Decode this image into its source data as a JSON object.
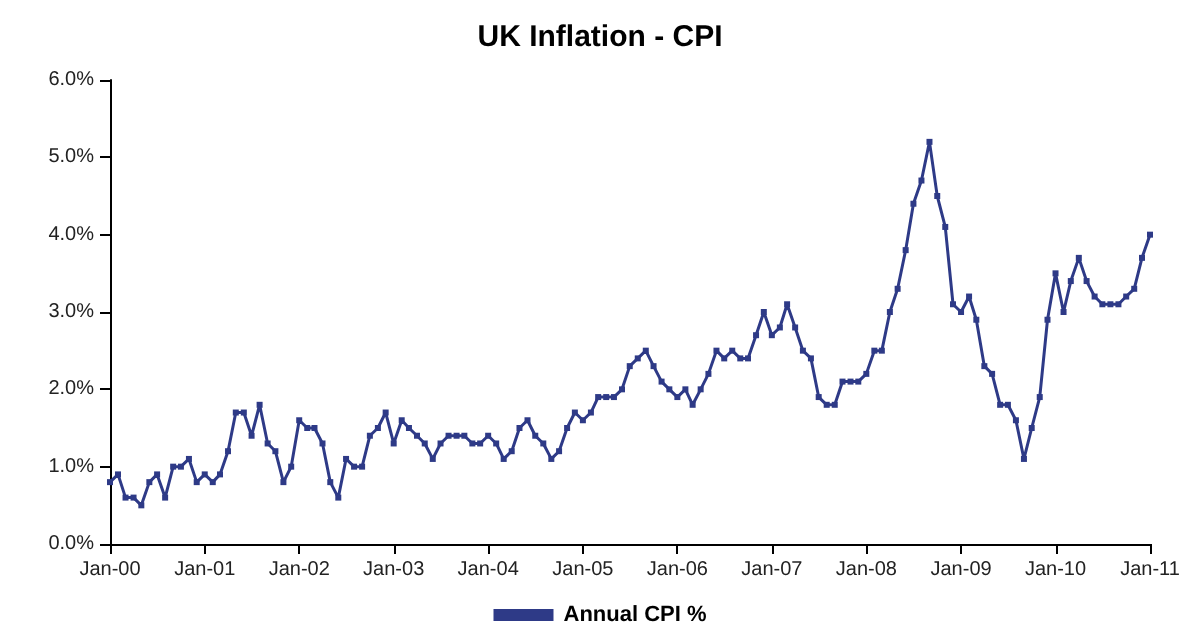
{
  "chart_data": {
    "type": "line",
    "title": "UK Inflation - CPI",
    "x": [
      "2000-01",
      "2000-02",
      "2000-03",
      "2000-04",
      "2000-05",
      "2000-06",
      "2000-07",
      "2000-08",
      "2000-09",
      "2000-10",
      "2000-11",
      "2000-12",
      "2001-01",
      "2001-02",
      "2001-03",
      "2001-04",
      "2001-05",
      "2001-06",
      "2001-07",
      "2001-08",
      "2001-09",
      "2001-10",
      "2001-11",
      "2001-12",
      "2002-01",
      "2002-02",
      "2002-03",
      "2002-04",
      "2002-05",
      "2002-06",
      "2002-07",
      "2002-08",
      "2002-09",
      "2002-10",
      "2002-11",
      "2002-12",
      "2003-01",
      "2003-02",
      "2003-03",
      "2003-04",
      "2003-05",
      "2003-06",
      "2003-07",
      "2003-08",
      "2003-09",
      "2003-10",
      "2003-11",
      "2003-12",
      "2004-01",
      "2004-02",
      "2004-03",
      "2004-04",
      "2004-05",
      "2004-06",
      "2004-07",
      "2004-08",
      "2004-09",
      "2004-10",
      "2004-11",
      "2004-12",
      "2005-01",
      "2005-02",
      "2005-03",
      "2005-04",
      "2005-05",
      "2005-06",
      "2005-07",
      "2005-08",
      "2005-09",
      "2005-10",
      "2005-11",
      "2005-12",
      "2006-01",
      "2006-02",
      "2006-03",
      "2006-04",
      "2006-05",
      "2006-06",
      "2006-07",
      "2006-08",
      "2006-09",
      "2006-10",
      "2006-11",
      "2006-12",
      "2007-01",
      "2007-02",
      "2007-03",
      "2007-04",
      "2007-05",
      "2007-06",
      "2007-07",
      "2007-08",
      "2007-09",
      "2007-10",
      "2007-11",
      "2007-12",
      "2008-01",
      "2008-02",
      "2008-03",
      "2008-04",
      "2008-05",
      "2008-06",
      "2008-07",
      "2008-08",
      "2008-09",
      "2008-10",
      "2008-11",
      "2008-12",
      "2009-01",
      "2009-02",
      "2009-03",
      "2009-04",
      "2009-05",
      "2009-06",
      "2009-07",
      "2009-08",
      "2009-09",
      "2009-10",
      "2009-11",
      "2009-12",
      "2010-01",
      "2010-02",
      "2010-03",
      "2010-04",
      "2010-05",
      "2010-06",
      "2010-07",
      "2010-08",
      "2010-09",
      "2010-10",
      "2010-11",
      "2010-12",
      "2011-01"
    ],
    "series": [
      {
        "name": "Annual CPI %",
        "color": "#2e3a87",
        "values": [
          0.8,
          0.9,
          0.6,
          0.6,
          0.5,
          0.8,
          0.9,
          0.6,
          1.0,
          1.0,
          1.1,
          0.8,
          0.9,
          0.8,
          0.9,
          1.2,
          1.7,
          1.7,
          1.4,
          1.8,
          1.3,
          1.2,
          0.8,
          1.0,
          1.6,
          1.5,
          1.5,
          1.3,
          0.8,
          0.6,
          1.1,
          1.0,
          1.0,
          1.4,
          1.5,
          1.7,
          1.3,
          1.6,
          1.5,
          1.4,
          1.3,
          1.1,
          1.3,
          1.4,
          1.4,
          1.4,
          1.3,
          1.3,
          1.4,
          1.3,
          1.1,
          1.2,
          1.5,
          1.6,
          1.4,
          1.3,
          1.1,
          1.2,
          1.5,
          1.7,
          1.6,
          1.7,
          1.9,
          1.9,
          1.9,
          2.0,
          2.3,
          2.4,
          2.5,
          2.3,
          2.1,
          2.0,
          1.9,
          2.0,
          1.8,
          2.0,
          2.2,
          2.5,
          2.4,
          2.5,
          2.4,
          2.4,
          2.7,
          3.0,
          2.7,
          2.8,
          3.1,
          2.8,
          2.5,
          2.4,
          1.9,
          1.8,
          1.8,
          2.1,
          2.1,
          2.1,
          2.2,
          2.5,
          2.5,
          3.0,
          3.3,
          3.8,
          4.4,
          4.7,
          5.2,
          4.5,
          4.1,
          3.1,
          3.0,
          3.2,
          2.9,
          2.3,
          2.2,
          1.8,
          1.8,
          1.6,
          1.1,
          1.5,
          1.9,
          2.9,
          3.5,
          3.0,
          3.4,
          3.7,
          3.4,
          3.2,
          3.1,
          3.1,
          3.1,
          3.2,
          3.3,
          3.7,
          4.0
        ]
      }
    ],
    "xlim": [
      "2000-01",
      "2011-01"
    ],
    "xticks": [
      {
        "value": "2000-01",
        "label": "Jan-00"
      },
      {
        "value": "2001-01",
        "label": "Jan-01"
      },
      {
        "value": "2002-01",
        "label": "Jan-02"
      },
      {
        "value": "2003-01",
        "label": "Jan-03"
      },
      {
        "value": "2004-01",
        "label": "Jan-04"
      },
      {
        "value": "2005-01",
        "label": "Jan-05"
      },
      {
        "value": "2006-01",
        "label": "Jan-06"
      },
      {
        "value": "2007-01",
        "label": "Jan-07"
      },
      {
        "value": "2008-01",
        "label": "Jan-08"
      },
      {
        "value": "2009-01",
        "label": "Jan-09"
      },
      {
        "value": "2010-01",
        "label": "Jan-10"
      },
      {
        "value": "2011-01",
        "label": "Jan-11"
      }
    ],
    "ylim": [
      0,
      6
    ],
    "yticks": [
      {
        "value": 0,
        "label": "0.0%"
      },
      {
        "value": 1,
        "label": "1.0%"
      },
      {
        "value": 2,
        "label": "2.0%"
      },
      {
        "value": 3,
        "label": "3.0%"
      },
      {
        "value": 4,
        "label": "4.0%"
      },
      {
        "value": 5,
        "label": "5.0%"
      },
      {
        "value": 6,
        "label": "6.0%"
      }
    ],
    "legend": "bottom",
    "marker": "square",
    "line_style": "solid"
  }
}
